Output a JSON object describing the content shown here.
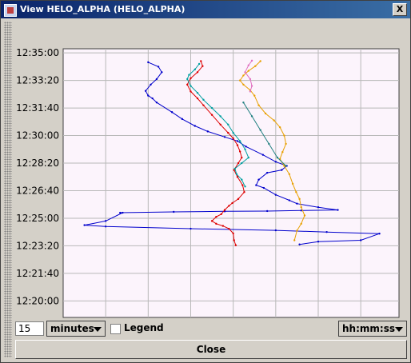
{
  "window": {
    "title": "View  HELO_ALPHA (HELO_ALPHA)",
    "close_glyph": "X",
    "icon": "app-window-icon"
  },
  "controls": {
    "count_value": "15",
    "units_label": "minutes",
    "legend_label": "Legend",
    "legend_checked": false,
    "format_label": "hh:mm:ss",
    "close_label": "Close"
  },
  "chart_data": {
    "type": "line",
    "title": "",
    "xlabel": "",
    "ylabel": "",
    "x_ticks": [
      "-150",
      "-100",
      "-50",
      "0",
      "50",
      "100",
      "150"
    ],
    "x_tick_values": [
      -150,
      -100,
      -50,
      0,
      50,
      100,
      150
    ],
    "y_ticks": [
      "12:35:00",
      "12:33:20",
      "12:31:40",
      "12:30:00",
      "12:28:20",
      "12:26:40",
      "12:25:00",
      "12:23:20",
      "12:21:40",
      "12:20:00"
    ],
    "y_tick_values": [
      2100,
      2000,
      1900,
      1800,
      1700,
      1600,
      1500,
      1400,
      1300,
      1200
    ],
    "xlim": [
      -200,
      195
    ],
    "ylim": [
      1140,
      2115
    ],
    "grid": true,
    "background": "#fcf4fc",
    "series": [
      {
        "color": "#0000cc",
        "x": [
          -100,
          -88,
          -84,
          -90,
          -97,
          -103,
          -100,
          -95,
          -90,
          -72,
          -60,
          -45,
          -30,
          -10,
          5,
          15,
          35,
          50,
          63,
          57,
          40,
          30,
          27,
          36,
          50,
          66,
          75,
          100,
          123,
          80,
          40,
          -10,
          -70,
          -133,
          -130,
          -150,
          -175,
          -150,
          -50,
          50,
          110,
          172,
          150,
          100,
          78
        ],
        "y": [
          2066,
          2050,
          2030,
          2005,
          1985,
          1962,
          1945,
          1935,
          1920,
          1885,
          1860,
          1835,
          1815,
          1795,
          1780,
          1760,
          1730,
          1705,
          1690,
          1675,
          1665,
          1640,
          1620,
          1610,
          1585,
          1565,
          1553,
          1540,
          1530,
          1528,
          1526,
          1525,
          1523,
          1520,
          1520,
          1490,
          1475,
          1470,
          1462,
          1456,
          1450,
          1444,
          1420,
          1415,
          1405
        ]
      },
      {
        "color": "#dd0000",
        "x": [
          -38,
          -36,
          -42,
          -50,
          -54,
          -50,
          -42,
          -35,
          -25,
          -15,
          -6,
          0,
          5,
          8,
          10,
          6,
          1,
          5,
          11,
          13,
          6,
          -1,
          -5,
          -10,
          -14,
          -20,
          -25,
          -20,
          -12,
          -5,
          0,
          1,
          3
        ],
        "y": [
          2070,
          2052,
          2030,
          2008,
          1985,
          1960,
          1935,
          1910,
          1875,
          1840,
          1810,
          1790,
          1765,
          1742,
          1720,
          1700,
          1675,
          1650,
          1620,
          1595,
          1570,
          1555,
          1545,
          1530,
          1515,
          1505,
          1490,
          1480,
          1472,
          1462,
          1445,
          1420,
          1402
        ]
      },
      {
        "color": "#00a0a0",
        "x": [
          -40,
          -45,
          -52,
          -54,
          -50,
          -42,
          -35,
          -25,
          -15,
          -6,
          0,
          8,
          14,
          18,
          10,
          2,
          4,
          10,
          14
        ],
        "y": [
          2060,
          2040,
          2020,
          2005,
          1980,
          1955,
          1930,
          1900,
          1870,
          1840,
          1810,
          1780,
          1750,
          1720,
          1700,
          1680,
          1660,
          1640,
          1615
        ]
      },
      {
        "color": "#e8a000",
        "x": [
          32,
          26,
          18,
          12,
          8,
          12,
          20,
          25,
          30,
          38,
          48,
          55,
          60,
          62,
          58,
          55,
          60,
          66,
          70,
          74,
          78,
          80,
          84,
          80,
          75,
          72
        ],
        "y": [
          2070,
          2052,
          2035,
          2018,
          2000,
          1985,
          1965,
          1945,
          1910,
          1880,
          1855,
          1830,
          1800,
          1770,
          1740,
          1715,
          1690,
          1660,
          1625,
          1595,
          1570,
          1540,
          1510,
          1480,
          1455,
          1420
        ]
      },
      {
        "color": "#e070c0",
        "x": [
          22,
          18,
          14,
          20,
          22,
          20
        ],
        "y": [
          2072,
          2055,
          2030,
          2005,
          1980,
          1960
        ]
      },
      {
        "color": "#208080",
        "x": [
          12,
          22,
          32,
          42,
          52,
          62
        ],
        "y": [
          1920,
          1870,
          1820,
          1770,
          1720,
          1690
        ]
      }
    ]
  }
}
